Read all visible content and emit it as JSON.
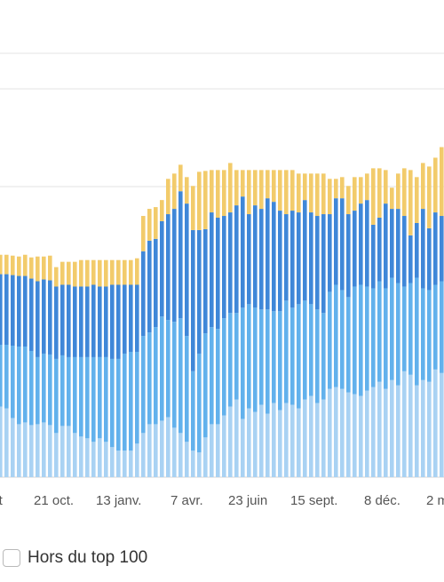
{
  "chart_data": {
    "type": "bar",
    "stacked": true,
    "title": "",
    "xlabel": "",
    "ylabel": "",
    "grid": true,
    "x_tick_labels": [
      "oût",
      "21 oct.",
      "13 janv.",
      "7 avr.",
      "23 juin",
      "15 sept.",
      "8 déc.",
      "2 m"
    ],
    "series": [
      {
        "color": "#a9d2f3",
        "values": [
          80,
          78,
          67,
          60,
          62,
          59,
          60,
          62,
          59,
          50,
          58,
          58,
          50,
          46,
          44,
          40,
          44,
          40,
          34,
          30,
          30,
          30,
          38,
          50,
          60,
          60,
          64,
          68,
          56,
          50,
          40,
          30,
          28,
          45,
          60,
          60,
          70,
          80,
          88,
          66,
          78,
          74,
          82,
          72,
          84,
          76,
          84,
          82,
          78,
          88,
          92,
          84,
          88,
          100,
          102,
          100,
          96,
          94,
          92,
          98,
          102,
          108,
          100,
          110,
          104,
          120,
          116,
          104,
          110,
          108,
          122,
          118
        ]
      },
      {
        "color": "#62b1ec",
        "values": [
          70,
          72,
          82,
          88,
          86,
          84,
          76,
          78,
          80,
          84,
          80,
          78,
          86,
          90,
          92,
          96,
          92,
          96,
          100,
          104,
          110,
          112,
          104,
          110,
          104,
          110,
          118,
          110,
          120,
          130,
          120,
          90,
          112,
          118,
          110,
          108,
          110,
          106,
          98,
          126,
          118,
          118,
          108,
          118,
          104,
          112,
          116,
          110,
          118,
          112,
          104,
          106,
          98,
          110,
          116,
          112,
          108,
          122,
          126,
          118,
          112,
          114,
          114,
          116,
          116,
          96,
          104,
          122,
          104,
          104,
          96,
          104
        ]
      },
      {
        "color": "#3f87d8",
        "values": [
          80,
          80,
          80,
          80,
          80,
          82,
          86,
          84,
          84,
          82,
          80,
          82,
          80,
          80,
          80,
          82,
          80,
          80,
          84,
          84,
          78,
          76,
          76,
          96,
          104,
          100,
          108,
          120,
          128,
          144,
          150,
          160,
          140,
          118,
          130,
          126,
          116,
          114,
          122,
          126,
          102,
          116,
          114,
          126,
          124,
          114,
          98,
          110,
          104,
          114,
          104,
          106,
          112,
          88,
          98,
          104,
          94,
          86,
          92,
          98,
          72,
          72,
          96,
          78,
          84,
          80,
          54,
          62,
          90,
          70,
          82,
          74
        ]
      },
      {
        "color": "#f2cb6b",
        "values": [
          22,
          22,
          22,
          22,
          24,
          24,
          28,
          26,
          28,
          22,
          26,
          26,
          28,
          30,
          30,
          28,
          30,
          30,
          28,
          28,
          28,
          28,
          30,
          40,
          36,
          36,
          24,
          40,
          40,
          30,
          30,
          50,
          66,
          66,
          48,
          54,
          52,
          56,
          40,
          30,
          50,
          40,
          44,
          32,
          36,
          46,
          50,
          46,
          44,
          30,
          44,
          48,
          46,
          40,
          22,
          24,
          32,
          38,
          30,
          30,
          64,
          56,
          38,
          24,
          40,
          54,
          74,
          52,
          52,
          70,
          62,
          78
        ]
      }
    ],
    "ylim": [
      0,
      440
    ]
  },
  "legend": {
    "label": "Hors du top 100"
  }
}
